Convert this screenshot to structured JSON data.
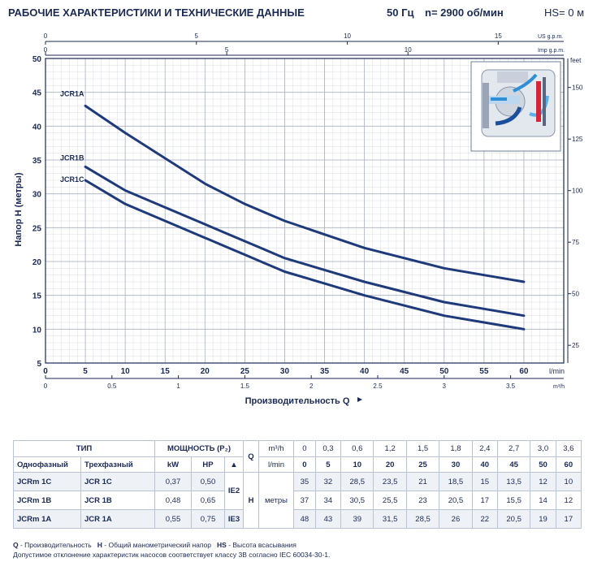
{
  "header": {
    "title": "РАБОЧИЕ ХАРАКТЕРИСТИКИ И ТЕХНИЧЕСКИЕ ДАННЫЕ",
    "frequency": "50 Гц",
    "speed": "n= 2900 об/мин",
    "suction": "HS= 0 м"
  },
  "chart_data": {
    "type": "line",
    "title": "",
    "xlabel": "Производительность Q",
    "ylabel": "Напор H (метры)",
    "xlim": [
      0,
      65
    ],
    "ylim": [
      5,
      50
    ],
    "x_unit": "l/min",
    "x_ticks": [
      "0",
      "5",
      "10",
      "15",
      "20",
      "25",
      "30",
      "35",
      "40",
      "45",
      "50",
      "55",
      "60"
    ],
    "y_ticks": [
      "5",
      "10",
      "15",
      "20",
      "25",
      "30",
      "35",
      "40",
      "45",
      "50"
    ],
    "m3h_ticks": [
      "0",
      "0.5",
      "1",
      "1.5",
      "2",
      "2.5",
      "3",
      "3.5"
    ],
    "m3h_unit": "m³/h",
    "usgpm_ticks": [
      "0",
      "5",
      "10",
      "15"
    ],
    "usgpm_unit": "US g.p.m.",
    "impgpm_ticks": [
      "0",
      "5",
      "10"
    ],
    "impgpm_unit": "Imp g.p.m.",
    "feet_ticks": [
      "25",
      "50",
      "75",
      "100",
      "125",
      "150"
    ],
    "feet_unit": "feet",
    "grid": true,
    "series": [
      {
        "name": "JCR1A",
        "x": [
          5,
          10,
          20,
          25,
          30,
          40,
          45,
          50,
          60
        ],
        "values": [
          43,
          39,
          31.5,
          28.5,
          26,
          22,
          20.5,
          19,
          17
        ]
      },
      {
        "name": "JCR1B",
        "x": [
          5,
          10,
          20,
          25,
          30,
          40,
          45,
          50,
          60
        ],
        "values": [
          34,
          30.5,
          25.5,
          23,
          20.5,
          17,
          15.5,
          14,
          12
        ]
      },
      {
        "name": "JCR1C",
        "x": [
          5,
          10,
          20,
          25,
          30,
          40,
          45,
          50,
          60
        ],
        "values": [
          32,
          28.5,
          23.5,
          21,
          18.5,
          15,
          13.5,
          12,
          10
        ]
      }
    ]
  },
  "table": {
    "h_type": "ТИП",
    "h_power": "МОЩНОСТЬ (P₂)",
    "h_q": "Q",
    "q_unit1": "m³/h",
    "q_unit2": "l/min",
    "q_m3h": [
      "0",
      "0,3",
      "0,6",
      "1,2",
      "1,5",
      "1,8",
      "2,4",
      "2,7",
      "3,0",
      "3,6"
    ],
    "q_lmin": [
      "0",
      "5",
      "10",
      "20",
      "25",
      "30",
      "40",
      "45",
      "50",
      "60"
    ],
    "h_single": "Однофазный",
    "h_three": "Трехфазный",
    "h_kw": "kW",
    "h_hp": "HP",
    "h_tri": "▲",
    "h_h": "H",
    "h_m": "метры",
    "ie2": "IE2",
    "ie3": "IE3",
    "rows": [
      {
        "single": "JCRm 1C",
        "three": "JCR 1C",
        "kw": "0,37",
        "hp": "0,50",
        "h": [
          "35",
          "32",
          "28,5",
          "23,5",
          "21",
          "18,5",
          "15",
          "13,5",
          "12",
          "10"
        ]
      },
      {
        "single": "JCRm 1B",
        "three": "JCR 1B",
        "kw": "0,48",
        "hp": "0,65",
        "h": [
          "37",
          "34",
          "30,5",
          "25,5",
          "23",
          "20,5",
          "17",
          "15,5",
          "14",
          "12"
        ]
      },
      {
        "single": "JCRm 1A",
        "three": "JCR 1A",
        "kw": "0,55",
        "hp": "0,75",
        "h": [
          "48",
          "43",
          "39",
          "31,5",
          "28,5",
          "26",
          "22",
          "20,5",
          "19",
          "17"
        ]
      }
    ]
  },
  "footer": {
    "q_key": "Q",
    "q_text": " - Производительность",
    "h_key": "H",
    "h_text": " - Общий манометрический напор",
    "hs_key": "HS",
    "hs_text": " - Высота всасывания",
    "note": "Допустимое отклонение характеристик насосов соответствует классу 3В согласно IEC 60034-30-1."
  }
}
